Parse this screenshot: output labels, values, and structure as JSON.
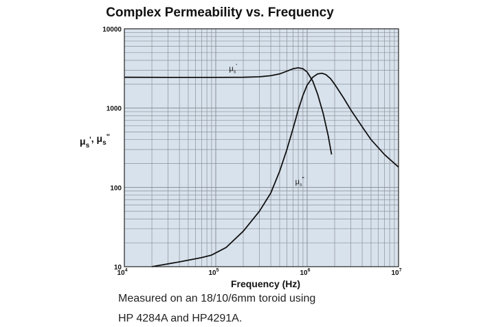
{
  "chart_data": {
    "type": "line",
    "title": "Complex Permeability vs. Frequency",
    "xlabel": "Frequency (Hz)",
    "ylabel": "μs', μs\"",
    "xscale": "log",
    "yscale": "log",
    "xlim": [
      10000,
      10000000
    ],
    "ylim": [
      10,
      10000
    ],
    "grid": true,
    "x_ticks": [
      {
        "base": "10",
        "exp": "4",
        "value": 10000
      },
      {
        "base": "10",
        "exp": "5",
        "value": 100000
      },
      {
        "base": "10",
        "exp": "6",
        "value": 1000000
      },
      {
        "base": "10",
        "exp": "7",
        "value": 10000000
      }
    ],
    "y_ticks": [
      {
        "label": "10",
        "value": 10
      },
      {
        "label": "100",
        "value": 100
      },
      {
        "label": "1000",
        "value": 1000
      },
      {
        "label": "10000",
        "value": 10000
      }
    ],
    "series": [
      {
        "name": "μs'",
        "label_main": "μ",
        "label_sub": "s",
        "label_mark": "'",
        "label_at": [
          140000,
          2950
        ],
        "x": [
          10000,
          30000,
          100000,
          200000,
          300000,
          400000,
          500000,
          600000,
          700000,
          800000,
          900000,
          1000000,
          1150000,
          1300000,
          1500000,
          1700000,
          1850000
        ],
        "y": [
          2450,
          2440,
          2440,
          2450,
          2480,
          2560,
          2700,
          2920,
          3130,
          3220,
          3130,
          2850,
          2200,
          1500,
          850,
          450,
          260
        ]
      },
      {
        "name": "μs\"",
        "label_main": "μ",
        "label_sub": "s",
        "label_mark": "\"",
        "label_at": [
          740000,
          110
        ],
        "x": [
          20000,
          40000,
          70000,
          90000,
          130000,
          200000,
          300000,
          400000,
          500000,
          600000,
          700000,
          800000,
          900000,
          1000000,
          1150000,
          1300000,
          1450000,
          1600000,
          1800000,
          2000000,
          2500000,
          3000000,
          4000000,
          5000000,
          7000000,
          10000000
        ],
        "y": [
          10,
          11.5,
          13,
          14,
          17.5,
          28,
          50,
          85,
          160,
          300,
          550,
          950,
          1450,
          1950,
          2450,
          2700,
          2750,
          2650,
          2350,
          2000,
          1350,
          950,
          580,
          400,
          260,
          180
        ]
      }
    ]
  },
  "caption": {
    "line1": "Measured on an 18/10/6mm toroid using",
    "line2": "HP 4284A and HP4291A."
  },
  "colors": {
    "plot_bg": "#d8e2ec",
    "grid": "#8a8f98",
    "curve": "#111111"
  }
}
